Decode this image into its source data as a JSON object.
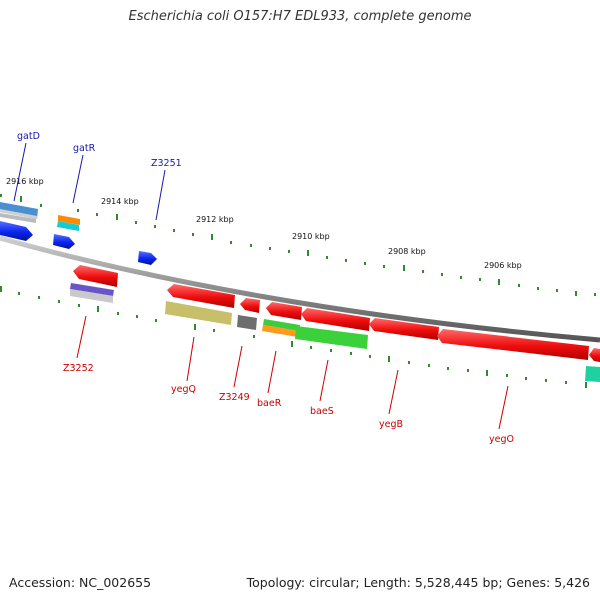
{
  "header": {
    "title": "Escherichia coli O157:H7 EDL933, complete genome"
  },
  "footer": {
    "accession": "Accession: NC_002655",
    "summary": "Topology: circular; Length: 5,528,445 bp; Genes: 5,426"
  },
  "colors": {
    "backbone": "#8a8a8a",
    "tick": "#2e8b2e",
    "forward_label": "#1a1aaa",
    "reverse_label": "#cc0000",
    "forward_gene": "#1030ff",
    "reverse_gene": "#ee1111"
  },
  "map": {
    "scale_labels": [
      "2916 kbp",
      "2914 kbp",
      "2912 kbp",
      "2910 kbp",
      "2908 kbp",
      "2906 kbp"
    ],
    "forward_genes": [
      "gatD",
      "gatR",
      "Z3251"
    ],
    "reverse_genes": [
      "Z3252",
      "yegQ",
      "Z3249",
      "baeR",
      "baeS",
      "yegB",
      "yegO"
    ]
  }
}
